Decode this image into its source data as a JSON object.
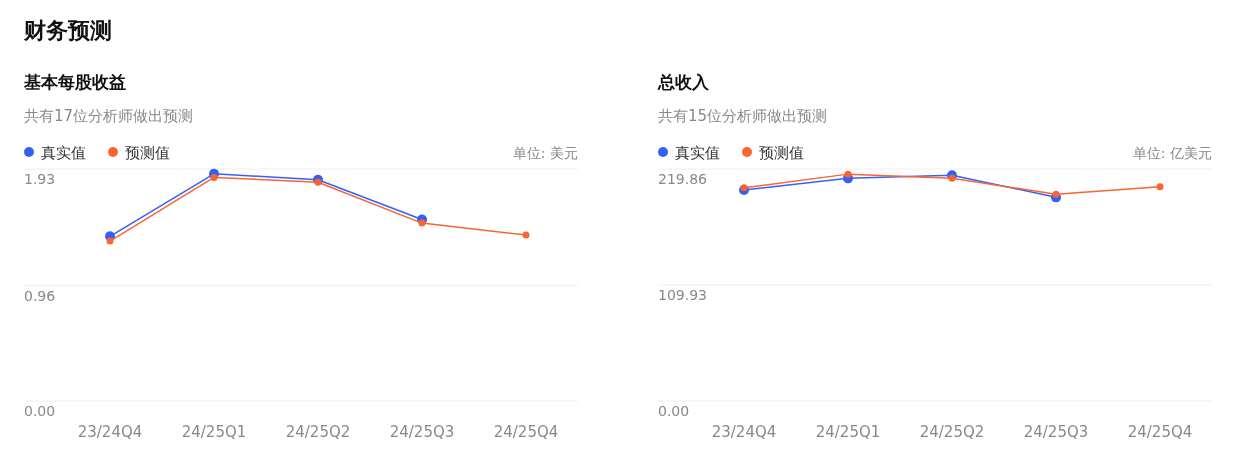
{
  "chart_data": [
    {
      "type": "line",
      "title": "基本每股收益",
      "subtitle": "共有17位分析师做出预测",
      "annotations": [
        "财务预测",
        "单位: 美元"
      ],
      "categories": [
        "23/24Q4",
        "24/25Q1",
        "24/25Q2",
        "24/25Q3",
        "24/25Q4"
      ],
      "series": [
        {
          "name": "真实值",
          "color": "#3461f5",
          "values": [
            1.37,
            1.89,
            1.84,
            1.51,
            null
          ]
        },
        {
          "name": "预测值",
          "color": "#fa6432",
          "values": [
            1.33,
            1.86,
            1.82,
            1.48,
            1.38
          ]
        }
      ],
      "ylim": [
        0,
        1.93
      ],
      "yticks": [
        {
          "value": 0,
          "label": "0.00"
        },
        0.96,
        1.93
      ],
      "grid": "y",
      "legend": "top left",
      "marker": "circle"
    },
    {
      "type": "line",
      "title": "总收入",
      "subtitle": "共有15位分析师做出预测",
      "annotations": [
        "单位: 亿美元"
      ],
      "categories": [
        "23/24Q4",
        "24/25Q1",
        "24/25Q2",
        "24/25Q3",
        "24/25Q4"
      ],
      "series": [
        {
          "name": "真实值",
          "color": "#3461f5",
          "values": [
            200,
            211,
            214,
            193,
            null
          ]
        },
        {
          "name": "预测值",
          "color": "#fa6432",
          "values": [
            202,
            215,
            211,
            196,
            203
          ]
        }
      ],
      "ylim": [
        0,
        219.86
      ],
      "yticks": [
        {
          "value": 0,
          "label": "0.00"
        },
        109.93,
        219.86
      ],
      "grid": "y",
      "legend": "top left",
      "marker": "circle"
    }
  ]
}
